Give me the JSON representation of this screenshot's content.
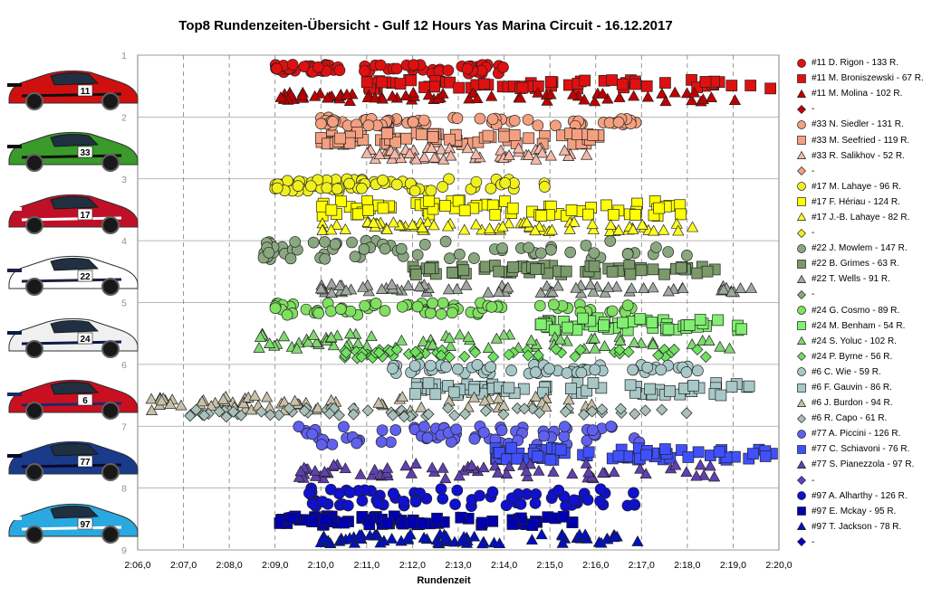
{
  "chart_data": {
    "type": "scatter",
    "title": "Top8 Rundenzeiten-Übersicht  - Gulf 12 Hours Yas Marina Circuit  - 16.12.2017",
    "xlabel": "Rundenzeit",
    "ylabel": "",
    "x_ticks": [
      "2:06,0",
      "2:07,0",
      "2:08,0",
      "2:09,0",
      "2:10,0",
      "2:11,0",
      "2:12,0",
      "2:13,0",
      "2:14,0",
      "2:15,0",
      "2:16,0",
      "2:17,0",
      "2:18,0",
      "2:19,0",
      "2:20,0"
    ],
    "x_range_seconds": [
      126,
      140
    ],
    "y_ticks": [
      "1",
      "2",
      "3",
      "4",
      "5",
      "6",
      "7",
      "8",
      "9"
    ],
    "y_range": [
      1,
      9
    ],
    "grid": true,
    "legend_position": "right",
    "series": [
      {
        "name": "#11 D. Rigon - 133 R.",
        "car": "11",
        "marker": "circle",
        "color": "#e01010",
        "band": [
          1.15,
          1.3
        ],
        "x_range": [
          129.0,
          134.0
        ],
        "laps": 133
      },
      {
        "name": "#11 M. Broniszewski - 67 R.",
        "car": "11",
        "marker": "square",
        "color": "#e01010",
        "band": [
          1.4,
          1.55
        ],
        "x_range": [
          131.0,
          139.9
        ],
        "laps": 67
      },
      {
        "name": "#11 M. Molina - 102 R.",
        "car": "11",
        "marker": "triangle",
        "color": "#c00000",
        "band": [
          1.6,
          1.75
        ],
        "x_range": [
          129.1,
          139.2
        ],
        "laps": 102
      },
      {
        "name": "-",
        "car": "11",
        "marker": "diamond",
        "color": "#c00000"
      },
      {
        "name": "#33 N. Siedler - 131 R.",
        "car": "33",
        "marker": "circle",
        "color": "#f4a080",
        "band": [
          2.0,
          2.15
        ],
        "x_range": [
          130.0,
          137.0
        ],
        "laps": 131
      },
      {
        "name": "#33 M. Seefried - 119 R.",
        "car": "33",
        "marker": "square",
        "color": "#f4a080",
        "band": [
          2.25,
          2.45
        ],
        "x_range": [
          130.0,
          136.2
        ],
        "laps": 119
      },
      {
        "name": "#33 R. Salikhov - 52 R.",
        "car": "33",
        "marker": "triangle",
        "color": "#f4b8a8",
        "band": [
          2.5,
          2.7
        ],
        "x_range": [
          131.0,
          136.0
        ],
        "laps": 52
      },
      {
        "name": "-",
        "car": "33",
        "marker": "diamond",
        "color": "#f4a080"
      },
      {
        "name": "#17 M. Lahaye - 96 R.",
        "car": "17",
        "marker": "circle",
        "color": "#f0f020",
        "band": [
          3.0,
          3.2
        ],
        "x_range": [
          129.0,
          135.0
        ],
        "laps": 96
      },
      {
        "name": "#17 F. Hériau - 124 R.",
        "car": "17",
        "marker": "square",
        "color": "#ffff00",
        "band": [
          3.35,
          3.6
        ],
        "x_range": [
          130.0,
          138.0
        ],
        "laps": 124
      },
      {
        "name": "#17 J.-B. Lahaye - 82 R.",
        "car": "17",
        "marker": "triangle",
        "color": "#ffff20",
        "band": [
          3.7,
          3.85
        ],
        "x_range": [
          130.0,
          138.4
        ],
        "laps": 82
      },
      {
        "name": "-",
        "car": "17",
        "marker": "diamond",
        "color": "#f0f020"
      },
      {
        "name": "#22 J. Mowlem - 147 R.",
        "car": "22",
        "marker": "circle",
        "color": "#8aa880",
        "band": [
          4.0,
          4.3
        ],
        "x_range": [
          128.7,
          138.0
        ],
        "laps": 147
      },
      {
        "name": "#22 B. Grimes - 63 R.",
        "car": "22",
        "marker": "square",
        "color": "#7a9a6a",
        "band": [
          4.4,
          4.55
        ],
        "x_range": [
          132.0,
          138.6
        ],
        "laps": 63
      },
      {
        "name": "#22 T. Wells - 91 R.",
        "car": "22",
        "marker": "triangle",
        "color": "#a0a8a0",
        "band": [
          4.7,
          4.85
        ],
        "x_range": [
          130.0,
          139.7
        ],
        "laps": 91
      },
      {
        "name": "-",
        "car": "22",
        "marker": "diamond",
        "color": "#8aa880"
      },
      {
        "name": "#24 G. Cosmo - 89 R.",
        "car": "24",
        "marker": "circle",
        "color": "#80e060",
        "band": [
          5.0,
          5.2
        ],
        "x_range": [
          129.0,
          137.0
        ],
        "laps": 89
      },
      {
        "name": "#24 M. Benham - 54 R.",
        "car": "24",
        "marker": "square",
        "color": "#80f070",
        "band": [
          5.25,
          5.45
        ],
        "x_range": [
          134.8,
          139.3
        ],
        "laps": 54
      },
      {
        "name": "#24 S. Yoluc - 102 R.",
        "car": "24",
        "marker": "triangle",
        "color": "#80d870",
        "band": [
          5.5,
          5.75
        ],
        "x_range": [
          128.6,
          139.2
        ],
        "laps": 102
      },
      {
        "name": "#24 P. Byrne - 56 R.",
        "car": "24",
        "marker": "diamond",
        "color": "#70e060",
        "band": [
          5.75,
          5.9
        ],
        "x_range": [
          130.5,
          139.2
        ],
        "laps": 56
      },
      {
        "name": "#6 C. Wie - 59 R.",
        "car": "6",
        "marker": "circle",
        "color": "#a8c8c8",
        "band": [
          6.0,
          6.15
        ],
        "x_range": [
          131.5,
          138.5
        ],
        "laps": 59
      },
      {
        "name": "#6 F. Gauvin - 86 R.",
        "car": "6",
        "marker": "square",
        "color": "#a8c8c8",
        "band": [
          6.3,
          6.5
        ],
        "x_range": [
          132.0,
          139.4
        ],
        "laps": 86
      },
      {
        "name": "#6 J. Burdon - 94 R.",
        "car": "6",
        "marker": "triangle",
        "color": "#c8c0a8",
        "band": [
          6.5,
          6.75
        ],
        "x_range": [
          126.3,
          136.0
        ],
        "laps": 94
      },
      {
        "name": "#6 R. Capo - 61 R.",
        "car": "6",
        "marker": "diamond",
        "color": "#a8c0b8",
        "band": [
          6.7,
          6.85
        ],
        "x_range": [
          127.0,
          138.0
        ],
        "laps": 61
      },
      {
        "name": "#77 A. Piccini - 126 R.",
        "car": "77",
        "marker": "circle",
        "color": "#6060f0",
        "band": [
          7.0,
          7.3
        ],
        "x_range": [
          129.5,
          137.0
        ],
        "laps": 126
      },
      {
        "name": "#77 C. Schiavoni - 76 R.",
        "car": "77",
        "marker": "square",
        "color": "#4050ff",
        "band": [
          7.35,
          7.55
        ],
        "x_range": [
          133.8,
          139.9
        ],
        "laps": 76
      },
      {
        "name": "#77 S. Pianezzola - 97 R.",
        "car": "77",
        "marker": "triangle",
        "color": "#6040b0",
        "band": [
          7.6,
          7.85
        ],
        "x_range": [
          129.5,
          138.6
        ],
        "laps": 97
      },
      {
        "name": "-",
        "car": "77",
        "marker": "diamond",
        "color": "#6040d0"
      },
      {
        "name": "#97 A. Alharthy - 126 R.",
        "car": "97",
        "marker": "circle",
        "color": "#1010d0",
        "band": [
          8.0,
          8.3
        ],
        "x_range": [
          129.7,
          137.1
        ],
        "laps": 126
      },
      {
        "name": "#97 E. Mckay - 95 R.",
        "car": "97",
        "marker": "square",
        "color": "#0000b0",
        "band": [
          8.45,
          8.6
        ],
        "x_range": [
          129.1,
          135.5
        ],
        "laps": 95
      },
      {
        "name": "#97 T. Jackson - 78 R.",
        "car": "97",
        "marker": "triangle",
        "color": "#0010c0",
        "band": [
          8.75,
          8.9
        ],
        "x_range": [
          130.0,
          137.0
        ],
        "laps": 78
      },
      {
        "name": "-",
        "car": "97",
        "marker": "diamond",
        "color": "#0000c0"
      }
    ]
  },
  "cars": [
    {
      "number": "11",
      "body": "#d01010",
      "trim": "#101010"
    },
    {
      "number": "33",
      "body": "#3a9a2a",
      "trim": "#101010"
    },
    {
      "number": "17",
      "body": "#c01028",
      "trim": "#ffffff"
    },
    {
      "number": "22",
      "body": "#ffffff",
      "trim": "#202040"
    },
    {
      "number": "24",
      "body": "#f0f0f0",
      "trim": "#0a1a4a"
    },
    {
      "number": "6",
      "body": "#c81020",
      "trim": "#1a2a6a"
    },
    {
      "number": "77",
      "body": "#1a3a8a",
      "trim": "#0a0a2a"
    },
    {
      "number": "97",
      "body": "#2aa8e0",
      "trim": "#ffffff"
    }
  ]
}
